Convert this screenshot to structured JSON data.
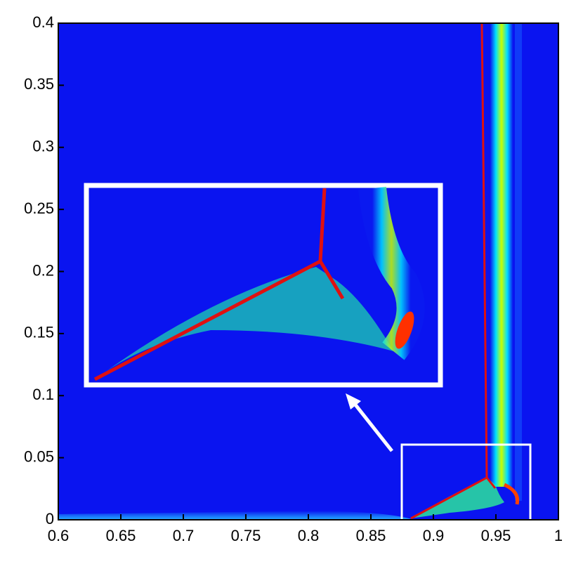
{
  "chart_data": {
    "type": "contour",
    "xlim": [
      0.6,
      1
    ],
    "ylim": [
      0,
      0.4
    ],
    "xticks": [
      0.6,
      0.65,
      0.7,
      0.75,
      0.8,
      0.85,
      0.9,
      0.95,
      1
    ],
    "yticks": [
      0,
      0.05,
      0.1,
      0.15,
      0.2,
      0.25,
      0.3,
      0.35,
      0.4
    ]
  }
}
